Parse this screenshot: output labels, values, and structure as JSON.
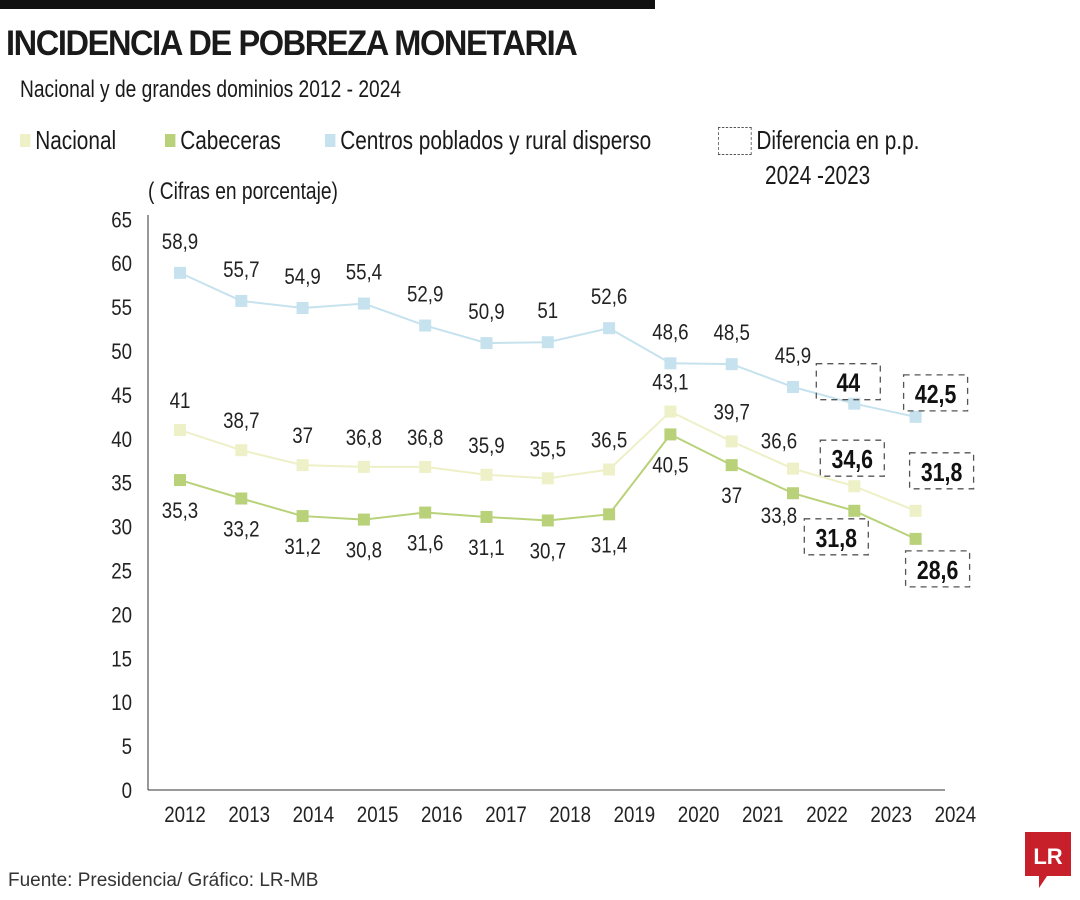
{
  "header": {
    "title": "INCIDENCIA DE POBREZA MONETARIA",
    "subtitle": "Nacional y de grandes dominios 2012 - 2024"
  },
  "legend": {
    "nacional": "Nacional",
    "cabeceras": "Cabeceras",
    "rural": "Centros poblados y rural disperso",
    "diff_line1": "Diferencia en p.p.",
    "diff_line2": "2024 -2023"
  },
  "units": "( Cifras en porcentaje)",
  "footer": {
    "source": "Fuente:  Presidencia/ Gráfico: LR-MB",
    "logo": "LR"
  },
  "colors": {
    "nacional": "#eef0c8",
    "cabeceras": "#b9d27a",
    "rural": "#c6e2ee",
    "logo": "#c8202a"
  },
  "chart_data": {
    "type": "line",
    "title": "INCIDENCIA DE POBREZA MONETARIA",
    "ylabel": "( Cifras en porcentaje)",
    "ylim": [
      0,
      65
    ],
    "yticks": [
      0,
      5,
      10,
      15,
      20,
      25,
      30,
      35,
      40,
      45,
      50,
      55,
      60,
      65
    ],
    "categories": [
      "2012",
      "2013",
      "2014",
      "2015",
      "2016",
      "2017",
      "2018",
      "2019",
      "2020",
      "2021",
      "2022",
      "2023",
      "2024"
    ],
    "grid": false,
    "legend_position": "top",
    "series": [
      {
        "name": "Centros poblados y rural disperso",
        "key": "rural",
        "values": [
          58.9,
          55.7,
          54.9,
          55.4,
          52.9,
          50.9,
          51,
          52.6,
          48.6,
          48.5,
          45.9,
          44,
          42.5
        ],
        "labels": [
          "58,9",
          "55,7",
          "54,9",
          "55,4",
          "52,9",
          "50,9",
          "51",
          "52,6",
          "48,6",
          "48,5",
          "45,9",
          "44",
          "42,5"
        ]
      },
      {
        "name": "Nacional",
        "key": "nacional",
        "values": [
          41,
          38.7,
          37,
          36.8,
          36.8,
          35.9,
          35.5,
          36.5,
          43.1,
          39.7,
          36.6,
          34.6,
          31.8
        ],
        "labels": [
          "41",
          "38,7",
          "37",
          "36,8",
          "36,8",
          "35,9",
          "35,5",
          "36,5",
          "43,1",
          "39,7",
          "36,6",
          "34,6",
          "31,8"
        ]
      },
      {
        "name": "Cabeceras",
        "key": "cabeceras",
        "values": [
          35.3,
          33.2,
          31.2,
          30.8,
          31.6,
          31.1,
          30.7,
          31.4,
          40.5,
          37,
          33.8,
          31.8,
          28.6
        ],
        "labels": [
          "35,3",
          "33,2",
          "31,2",
          "30,8",
          "31,6",
          "31,1",
          "30,7",
          "31,4",
          "40,5",
          "37",
          "33,8",
          "31,8",
          "28,6"
        ]
      }
    ],
    "highlighted_years": [
      "2023",
      "2024"
    ]
  }
}
